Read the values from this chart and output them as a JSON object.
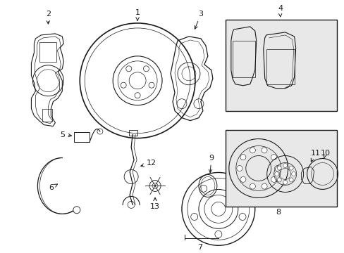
{
  "background_color": "#ffffff",
  "line_color": "#1a1a1a",
  "box_fill": "#e8e8e8",
  "figsize": [
    4.89,
    3.6
  ],
  "dpi": 100
}
